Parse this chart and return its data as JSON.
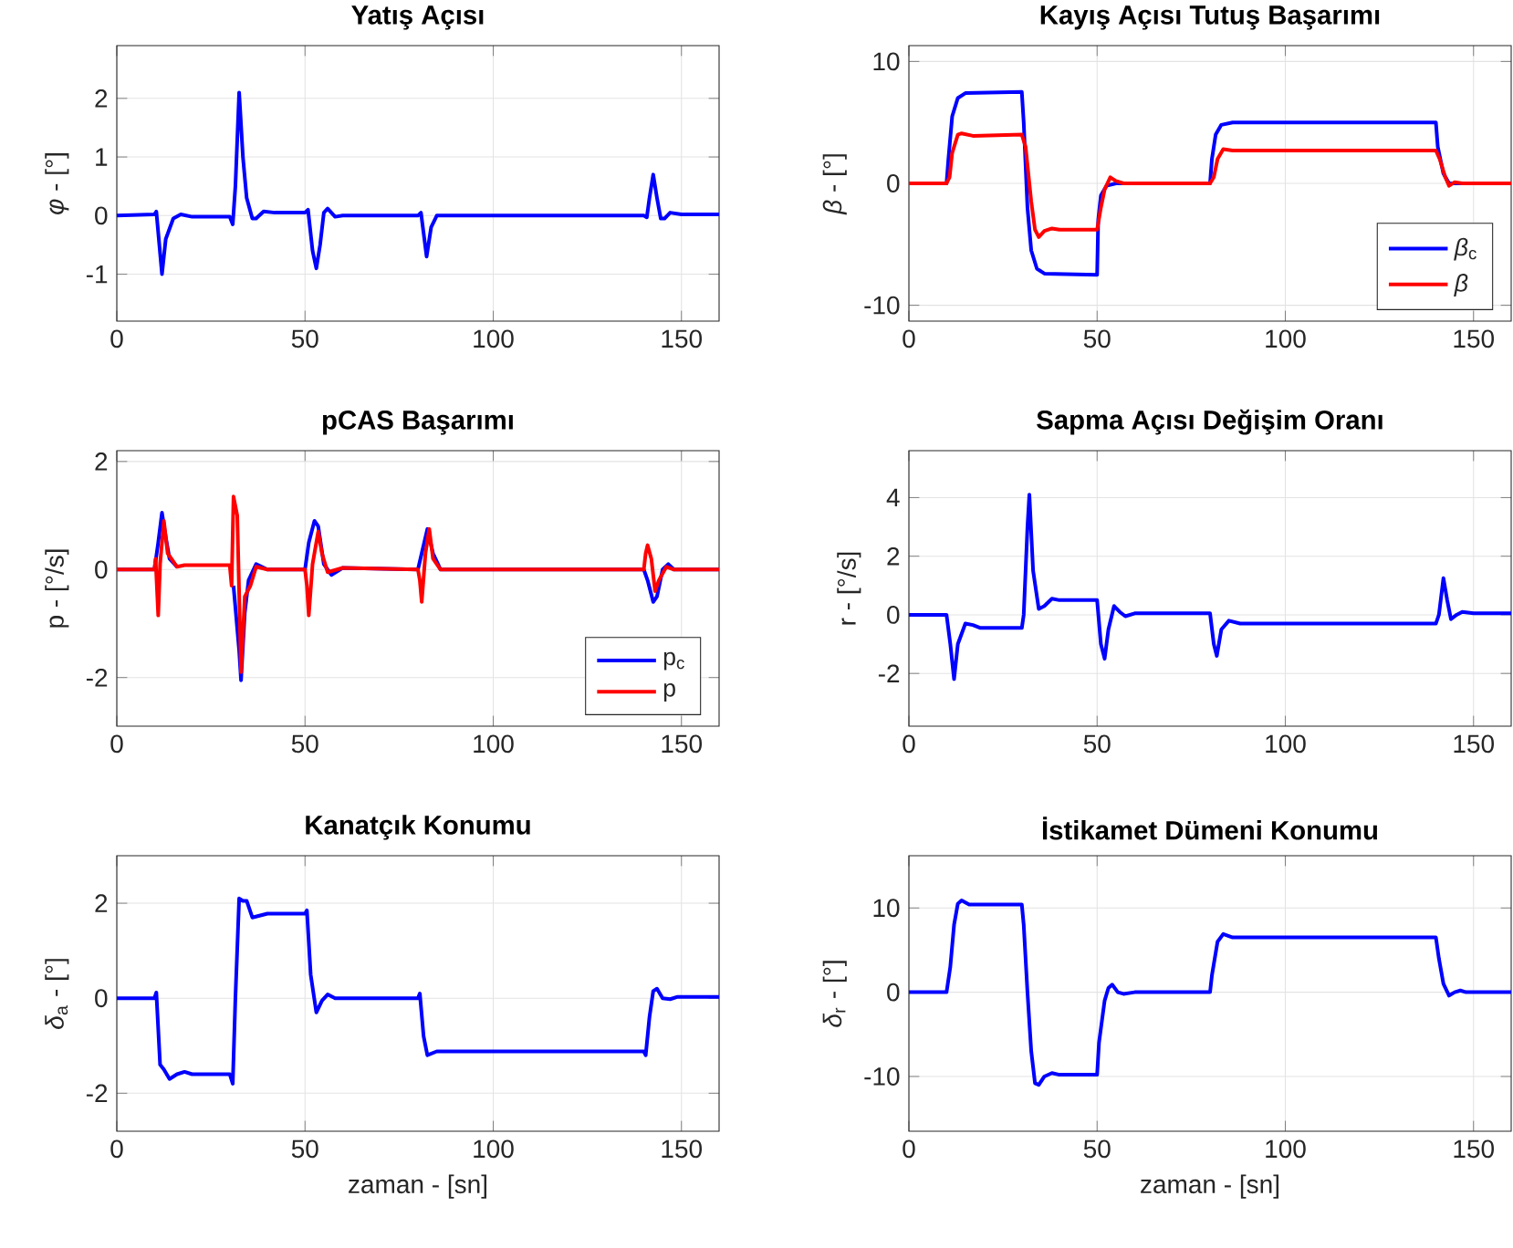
{
  "chart_data": [
    {
      "type": "line",
      "title": "Yatış Açısı",
      "ylabel": "*φ* - [°]",
      "xlim": [
        0,
        160
      ],
      "xticks": [
        0,
        50,
        100,
        150
      ],
      "ylim": [
        -1.8,
        2.9
      ],
      "yticks": [
        -1,
        0,
        1,
        2
      ],
      "grid": true,
      "series": [
        {
          "color": "#0000ff",
          "x": [
            0,
            10,
            10.5,
            12,
            13,
            15,
            17,
            20,
            30,
            30.8,
            31.5,
            32.5,
            33.5,
            34.5,
            36,
            37,
            39,
            42,
            50,
            50.8,
            52,
            53,
            54,
            55,
            56,
            58,
            60,
            80,
            80.8,
            81.5,
            82.3,
            83.5,
            85,
            87,
            140,
            140.8,
            141.5,
            142.5,
            143.5,
            144.5,
            145.5,
            147,
            150,
            160
          ],
          "values": [
            0,
            0.02,
            0.07,
            -1.0,
            -0.4,
            -0.05,
            0.02,
            -0.02,
            -0.02,
            -0.15,
            0.5,
            2.1,
            1.0,
            0.3,
            -0.05,
            -0.05,
            0.07,
            0.05,
            0.05,
            0.1,
            -0.6,
            -0.9,
            -0.5,
            0.05,
            0.12,
            -0.02,
            0,
            0,
            0.05,
            -0.3,
            -0.7,
            -0.2,
            0,
            0,
            0,
            -0.03,
            0.3,
            0.7,
            0.3,
            -0.05,
            -0.05,
            0.05,
            0.02,
            0.02
          ]
        }
      ]
    },
    {
      "type": "line",
      "title": "Kayış Açısı Tutuş Başarımı",
      "ylabel": "*β* - [°]",
      "xlim": [
        0,
        160
      ],
      "xticks": [
        0,
        50,
        100,
        150
      ],
      "ylim": [
        -11.3,
        11.3
      ],
      "yticks": [
        -10,
        0,
        10
      ],
      "grid": true,
      "legend": "bottom right",
      "series": [
        {
          "name": "*β*$_{c}$",
          "color": "#0000ff",
          "x": [
            0,
            10,
            10.5,
            11.5,
            13,
            15,
            30,
            30.5,
            31.5,
            32.5,
            34,
            36,
            50,
            50.3,
            51,
            52.5,
            55,
            80,
            80.5,
            81.5,
            83,
            86,
            140,
            140.5,
            142,
            143.5,
            160
          ],
          "values": [
            0,
            0,
            2,
            5.5,
            7,
            7.4,
            7.5,
            5,
            -2,
            -5.5,
            -7,
            -7.4,
            -7.5,
            -3,
            -1,
            -0.2,
            0,
            0,
            2,
            4,
            4.8,
            5,
            5,
            3,
            0.8,
            0,
            0
          ]
        },
        {
          "name": "*β*",
          "color": "#ff0000",
          "x": [
            0,
            10,
            10.8,
            11.5,
            13,
            14,
            17,
            30,
            31,
            32.5,
            33.5,
            34.5,
            36,
            38,
            40,
            50,
            51,
            52,
            53.5,
            55,
            57,
            80,
            81,
            82,
            83.5,
            86,
            140,
            141,
            142.5,
            143.5,
            145,
            147,
            160
          ],
          "values": [
            0,
            0,
            0.5,
            2.5,
            4,
            4.1,
            3.9,
            4,
            3,
            -1.5,
            -3.8,
            -4.4,
            -3.9,
            -3.7,
            -3.8,
            -3.8,
            -2,
            -0.5,
            0.5,
            0.2,
            0,
            0,
            0.5,
            2,
            2.8,
            2.7,
            2.7,
            2,
            0.5,
            -0.2,
            0.1,
            0,
            0
          ]
        }
      ]
    },
    {
      "type": "line",
      "title": "pCAS Başarımı",
      "ylabel": "p - [°/s]",
      "xlim": [
        0,
        160
      ],
      "xticks": [
        0,
        50,
        100,
        150
      ],
      "ylim": [
        -2.9,
        2.2
      ],
      "yticks": [
        -2,
        0,
        2
      ],
      "grid": true,
      "legend": "bottom right",
      "series": [
        {
          "name": "p$_{c}$",
          "color": "#0000ff",
          "x": [
            0,
            10,
            11,
            12,
            13,
            14,
            16,
            18,
            30,
            31,
            32.5,
            33,
            34,
            35,
            37,
            40,
            50,
            51,
            52.5,
            53.5,
            55,
            57,
            60,
            80,
            81,
            82.5,
            84,
            86,
            140,
            141,
            142.5,
            143.5,
            145,
            146.5,
            148,
            160
          ],
          "values": [
            0,
            0,
            0.5,
            1.05,
            0.6,
            0.2,
            0.05,
            null,
            null,
            -0.3,
            -1.5,
            -2.05,
            -0.8,
            -0.2,
            0.1,
            0,
            0,
            0.5,
            0.9,
            0.8,
            0.1,
            -0.1,
            0.03,
            0,
            0.3,
            0.75,
            0.3,
            0,
            0,
            -0.2,
            -0.6,
            -0.5,
            0,
            0.1,
            0,
            0
          ]
        },
        {
          "name": "p",
          "color": "#ff0000",
          "x": [
            0,
            10,
            10.3,
            11,
            11.5,
            12.5,
            13.5,
            16,
            18,
            30,
            30.5,
            31,
            32,
            33,
            34,
            35.5,
            37,
            40,
            50,
            50.5,
            51,
            52,
            53.5,
            54.5,
            56,
            60,
            80,
            80.5,
            81,
            82,
            83,
            84,
            86,
            140,
            140.5,
            141,
            142,
            143,
            144,
            146,
            148,
            160
          ],
          "values": [
            0,
            0,
            0.2,
            -0.85,
            0.1,
            0.9,
            0.3,
            0.05,
            0.08,
            0.08,
            -0.3,
            1.35,
            1.0,
            -1.9,
            -0.5,
            -0.3,
            0.05,
            0,
            0,
            -0.3,
            -0.85,
            0.1,
            0.7,
            0.3,
            -0.05,
            0.03,
            0,
            -0.2,
            -0.6,
            0.3,
            0.75,
            0.2,
            0,
            0,
            0.3,
            0.45,
            0.2,
            -0.4,
            -0.2,
            0.05,
            0,
            0
          ]
        }
      ]
    },
    {
      "type": "line",
      "title": "Sapma Açısı Değişim Oranı",
      "ylabel": "r - [°/s]",
      "xlim": [
        0,
        160
      ],
      "xticks": [
        0,
        50,
        100,
        150
      ],
      "ylim": [
        -3.8,
        5.6
      ],
      "yticks": [
        -2,
        0,
        2,
        4
      ],
      "grid": true,
      "series": [
        {
          "color": "#0000ff",
          "x": [
            0,
            10,
            11,
            12,
            13,
            15,
            17,
            19,
            30,
            30.5,
            31.5,
            32,
            33,
            34.5,
            36,
            38,
            40,
            50,
            51,
            52,
            53,
            54.5,
            56,
            57.5,
            60,
            80,
            81,
            81.8,
            83,
            85,
            88,
            140,
            140.8,
            142,
            143,
            144,
            145.5,
            147,
            150,
            160
          ],
          "values": [
            0,
            0,
            -1,
            -2.2,
            -1,
            -0.3,
            -0.35,
            -0.45,
            -0.45,
            0,
            3,
            4.1,
            1.5,
            0.2,
            0.3,
            0.55,
            0.5,
            0.5,
            -1,
            -1.5,
            -0.5,
            0.3,
            0.1,
            -0.05,
            0.05,
            0.05,
            -1,
            -1.4,
            -0.5,
            -0.2,
            -0.3,
            -0.3,
            0,
            1.25,
            0.5,
            -0.15,
            0,
            0.1,
            0.05,
            0.05
          ]
        }
      ]
    },
    {
      "type": "line",
      "title": "Kanatçık Konumu",
      "xlabel": "zaman - [sn]",
      "ylabel": "*δ*$_{a}$ - [°]",
      "xlim": [
        0,
        160
      ],
      "xticks": [
        0,
        50,
        100,
        150
      ],
      "ylim": [
        -2.8,
        3.0
      ],
      "yticks": [
        -2,
        0,
        2
      ],
      "grid": true,
      "series": [
        {
          "color": "#0000ff",
          "x": [
            0,
            10,
            10.5,
            11.5,
            12.5,
            14,
            16,
            18,
            20,
            30,
            30.8,
            31.5,
            32.5,
            33.5,
            34.5,
            36,
            40,
            50,
            50.5,
            51.5,
            53,
            54.5,
            56,
            58,
            60,
            80,
            80.5,
            81.5,
            82.5,
            85,
            140,
            140.5,
            141.5,
            142.5,
            143.5,
            145,
            147,
            149,
            160
          ],
          "values": [
            0,
            0,
            0.12,
            -1.4,
            -1.5,
            -1.7,
            -1.6,
            -1.55,
            -1.6,
            -1.6,
            -1.8,
            0,
            2.1,
            2.05,
            2.05,
            1.7,
            1.78,
            1.78,
            1.85,
            0.5,
            -0.3,
            -0.05,
            0.08,
            0,
            0,
            0,
            0.1,
            -0.8,
            -1.2,
            -1.12,
            -1.12,
            -1.2,
            -0.4,
            0.15,
            0.2,
            0,
            -0.02,
            0.03,
            0.03
          ]
        }
      ]
    },
    {
      "type": "line",
      "title": "İstikamet Dümeni Konumu",
      "xlabel": "zaman - [sn]",
      "ylabel": "*δ*$_{r}$ - [°]",
      "xlim": [
        0,
        160
      ],
      "xticks": [
        0,
        50,
        100,
        150
      ],
      "ylim": [
        -16.5,
        16.2
      ],
      "yticks": [
        -10,
        0,
        10
      ],
      "grid": true,
      "series": [
        {
          "color": "#0000ff",
          "x": [
            0,
            10,
            11,
            12,
            13,
            14,
            16,
            18,
            30,
            30.5,
            31.5,
            32.5,
            33.5,
            34.5,
            36,
            38,
            40,
            50,
            50.5,
            52,
            53,
            54,
            55.5,
            57,
            60,
            80,
            80.5,
            82,
            83.5,
            86,
            140,
            140.8,
            142,
            143.5,
            145,
            146.5,
            148,
            160
          ],
          "values": [
            0,
            0,
            3,
            8,
            10.5,
            10.9,
            10.4,
            10.4,
            10.4,
            8,
            0,
            -7,
            -10.8,
            -11,
            -10,
            -9.6,
            -9.8,
            -9.8,
            -6,
            -1,
            0.5,
            0.9,
            0,
            -0.2,
            0,
            0,
            2,
            6,
            6.9,
            6.5,
            6.5,
            4,
            1,
            -0.4,
            0,
            0.2,
            0,
            0
          ]
        }
      ]
    }
  ]
}
